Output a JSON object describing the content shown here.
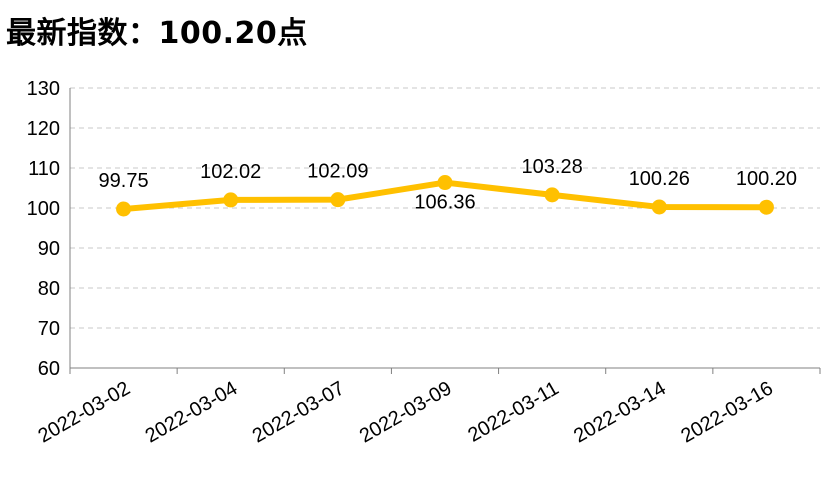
{
  "title": "最新指数：100.20点",
  "chart_data": {
    "type": "line",
    "title": "最新指数：100.20点",
    "xlabel": "",
    "ylabel": "",
    "categories": [
      "2022-03-02",
      "2022-03-04",
      "2022-03-07",
      "2022-03-09",
      "2022-03-11",
      "2022-03-14",
      "2022-03-16"
    ],
    "series": [
      {
        "values": [
          99.75,
          102.02,
          102.09,
          106.36,
          103.28,
          100.26,
          100.2
        ],
        "labels": [
          "99.75",
          "102.02",
          "102.09",
          "106.36",
          "103.28",
          "100.26",
          "100.20"
        ]
      }
    ],
    "ylim": [
      60,
      130
    ],
    "yticks": [
      "60",
      "70",
      "80",
      "90",
      "100",
      "110",
      "120",
      "130"
    ],
    "grid": true,
    "legend": "none",
    "colors": {
      "line": "#FFC000",
      "grid": "#C8C8C8",
      "axis": "#808080"
    }
  }
}
